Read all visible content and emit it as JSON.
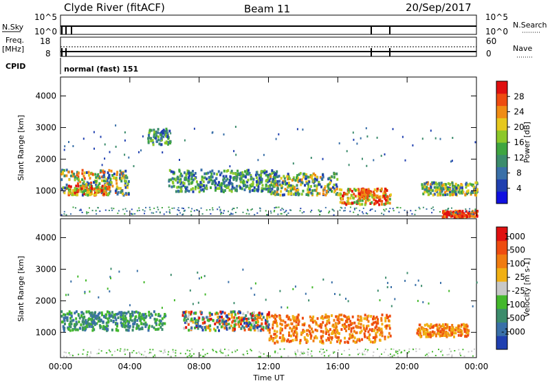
{
  "header": {
    "title": "Clyde River (fitACF)",
    "beam": "Beam 11",
    "date": "20/Sep/2017"
  },
  "top_panel": {
    "left_label": "N.Sky",
    "left_ticks": [
      "10^5",
      "10^0"
    ],
    "right_ticks": [
      "10^5",
      "10^0"
    ],
    "right_label": "N.Search"
  },
  "freq_panel": {
    "left_label_1": "Freq.",
    "left_label_2": "[MHz]",
    "left_ticks": [
      "18",
      "8"
    ],
    "right_ticks": [
      "60",
      "0"
    ],
    "right_label": "Nave"
  },
  "cpid": {
    "label": "CPID",
    "value": "normal (fast) 151"
  },
  "colors": {
    "power": [
      "#1010e0",
      "#2040b0",
      "#3a70a8",
      "#3c8c6c",
      "#3fa540",
      "#8cc82a",
      "#e6c81e",
      "#f08c14",
      "#ee4c10",
      "#e01010"
    ],
    "velocity": [
      "#e01010",
      "#ee4c10",
      "#f07c10",
      "#f0b014",
      "#c8c8c8",
      "#44b82c",
      "#3c8c6c",
      "#3a70a8",
      "#2040b0"
    ]
  },
  "chart_data": [
    {
      "type": "heatmap",
      "name": "Power",
      "xlabel": "",
      "ylabel": "Slant Range [km]",
      "yticks": [
        "1000",
        "2000",
        "3000",
        "4000"
      ],
      "ylim": [
        200,
        4600
      ],
      "colorbar": {
        "label": "Power [dB]",
        "ticks": [
          "4",
          "8",
          "12",
          "16",
          "20",
          "24",
          "28"
        ],
        "range": [
          0,
          32
        ]
      },
      "blobs": [
        {
          "t0": 0.0,
          "t1": 3.9,
          "r0": 900,
          "r1": 1700,
          "level": "mixed-high"
        },
        {
          "t0": 0.4,
          "t1": 2.8,
          "r0": 900,
          "r1": 1200,
          "level": "high"
        },
        {
          "t0": 5.0,
          "t1": 6.3,
          "r0": 2500,
          "r1": 3000,
          "level": "mid"
        },
        {
          "t0": 6.2,
          "t1": 12.5,
          "r0": 1000,
          "r1": 1700,
          "level": "mid"
        },
        {
          "t0": 12.0,
          "t1": 16.0,
          "r0": 900,
          "r1": 1600,
          "level": "mixed-mid"
        },
        {
          "t0": 16.0,
          "t1": 19.0,
          "r0": 600,
          "r1": 1100,
          "level": "high"
        },
        {
          "t0": 17.2,
          "t1": 17.8,
          "r0": 800,
          "r1": 1100,
          "level": "peak"
        },
        {
          "t0": 20.8,
          "t1": 24.0,
          "r0": 900,
          "r1": 1300,
          "level": "mixed-mid"
        },
        {
          "t0": 22.0,
          "t1": 24.0,
          "r0": 200,
          "r1": 400,
          "level": "peak"
        }
      ]
    },
    {
      "type": "heatmap",
      "name": "Velocity",
      "xlabel": "Time UT",
      "ylabel": "Slant Range [km]",
      "xticks": [
        "00:00",
        "04:00",
        "08:00",
        "12:00",
        "16:00",
        "20:00",
        "00:00"
      ],
      "yticks": [
        "1000",
        "2000",
        "3000",
        "4000"
      ],
      "ylim": [
        200,
        4600
      ],
      "colorbar": {
        "label": "Velocity [m s-1]",
        "ticks": [
          "1000",
          "500",
          "100",
          "25",
          "-25",
          "-100",
          "-500",
          "-1000"
        ]
      },
      "blobs": [
        {
          "t0": 0.0,
          "t1": 6.0,
          "r0": 1100,
          "r1": 1700,
          "level": "green"
        },
        {
          "t0": 7.0,
          "t1": 12.0,
          "r0": 1100,
          "r1": 1700,
          "level": "mixed"
        },
        {
          "t0": 12.0,
          "t1": 19.0,
          "r0": 700,
          "r1": 1600,
          "level": "orange"
        },
        {
          "t0": 20.5,
          "t1": 23.5,
          "r0": 900,
          "r1": 1300,
          "level": "orange"
        }
      ]
    }
  ]
}
